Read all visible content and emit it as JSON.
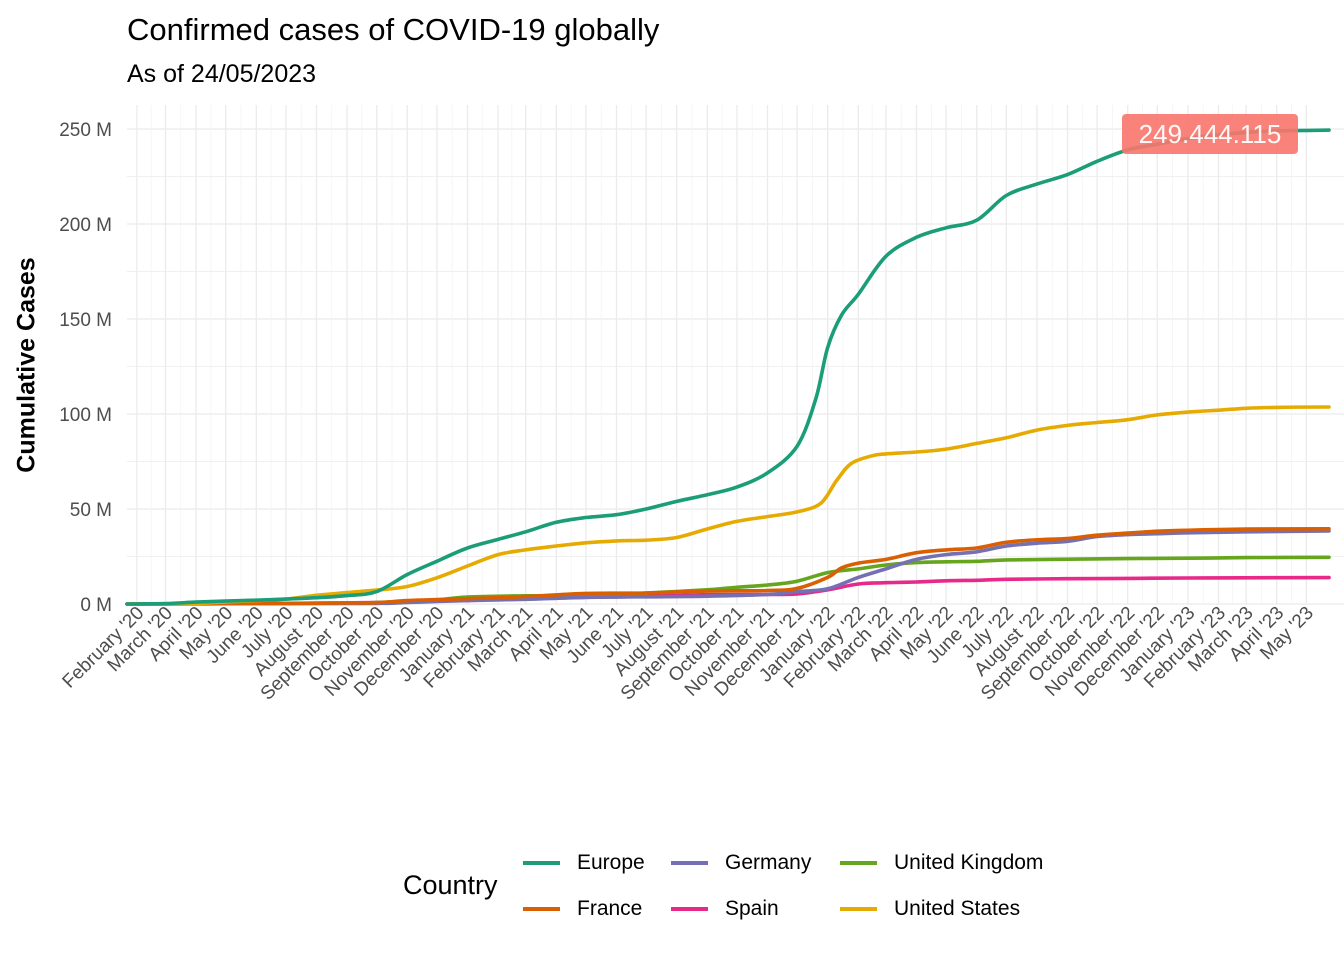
{
  "chart_data": {
    "type": "line",
    "title": "Confirmed cases of COVID-19 globally",
    "subtitle": "As of 24/05/2023",
    "xlabel": "",
    "ylabel": "Cumulative Cases",
    "xlim": [
      "2020-01-22",
      "2023-05-24"
    ],
    "ylim": [
      0,
      260000000
    ],
    "y_ticks": [
      {
        "value": 0,
        "label": "0 M"
      },
      {
        "value": 50000000,
        "label": "50 M"
      },
      {
        "value": 100000000,
        "label": "100 M"
      },
      {
        "value": 150000000,
        "label": "150 M"
      },
      {
        "value": 200000000,
        "label": "200 M"
      },
      {
        "value": 250000000,
        "label": "250 M"
      }
    ],
    "x_ticks": [
      {
        "date": "2020-02-01",
        "label": "February '20"
      },
      {
        "date": "2020-03-01",
        "label": "March '20"
      },
      {
        "date": "2020-04-01",
        "label": "April '20"
      },
      {
        "date": "2020-05-01",
        "label": "May '20"
      },
      {
        "date": "2020-06-01",
        "label": "June '20"
      },
      {
        "date": "2020-07-01",
        "label": "July '20"
      },
      {
        "date": "2020-08-01",
        "label": "August '20"
      },
      {
        "date": "2020-09-01",
        "label": "September '20"
      },
      {
        "date": "2020-10-01",
        "label": "October '20"
      },
      {
        "date": "2020-11-01",
        "label": "November '20"
      },
      {
        "date": "2020-12-01",
        "label": "December '20"
      },
      {
        "date": "2021-01-01",
        "label": "January '21"
      },
      {
        "date": "2021-02-01",
        "label": "February '21"
      },
      {
        "date": "2021-03-01",
        "label": "March '21"
      },
      {
        "date": "2021-04-01",
        "label": "April '21"
      },
      {
        "date": "2021-05-01",
        "label": "May '21"
      },
      {
        "date": "2021-06-01",
        "label": "June '21"
      },
      {
        "date": "2021-07-01",
        "label": "July '21"
      },
      {
        "date": "2021-08-01",
        "label": "August '21"
      },
      {
        "date": "2021-09-01",
        "label": "September '21"
      },
      {
        "date": "2021-10-01",
        "label": "October '21"
      },
      {
        "date": "2021-11-01",
        "label": "November '21"
      },
      {
        "date": "2021-12-01",
        "label": "December '21"
      },
      {
        "date": "2022-01-01",
        "label": "January '22"
      },
      {
        "date": "2022-02-01",
        "label": "February '22"
      },
      {
        "date": "2022-03-01",
        "label": "March '22"
      },
      {
        "date": "2022-04-01",
        "label": "April '22"
      },
      {
        "date": "2022-05-01",
        "label": "May '22"
      },
      {
        "date": "2022-06-01",
        "label": "June '22"
      },
      {
        "date": "2022-07-01",
        "label": "July '22"
      },
      {
        "date": "2022-08-01",
        "label": "August '22"
      },
      {
        "date": "2022-09-01",
        "label": "September '22"
      },
      {
        "date": "2022-10-01",
        "label": "October '22"
      },
      {
        "date": "2022-11-01",
        "label": "November '22"
      },
      {
        "date": "2022-12-01",
        "label": "December '22"
      },
      {
        "date": "2023-01-01",
        "label": "January '23"
      },
      {
        "date": "2023-02-01",
        "label": "February '23"
      },
      {
        "date": "2023-03-01",
        "label": "March '23"
      },
      {
        "date": "2023-04-01",
        "label": "April '23"
      },
      {
        "date": "2023-05-01",
        "label": "May '23"
      }
    ],
    "grid": true,
    "legend": {
      "title": "Country",
      "position": "bottom"
    },
    "annotation": {
      "label": "249.444.115",
      "date": "2023-05-24",
      "value": 249444115,
      "color": "#F8766D"
    },
    "series": [
      {
        "name": "Europe",
        "color": "#1B9E77",
        "points": [
          [
            "2020-01-22",
            0
          ],
          [
            "2020-03-01",
            0.2
          ],
          [
            "2020-04-01",
            1.0
          ],
          [
            "2020-05-01",
            1.5
          ],
          [
            "2020-06-01",
            2.0
          ],
          [
            "2020-07-01",
            2.6
          ],
          [
            "2020-08-01",
            3.3
          ],
          [
            "2020-09-01",
            4.4
          ],
          [
            "2020-10-01",
            6.5
          ],
          [
            "2020-11-01",
            15.5
          ],
          [
            "2020-12-01",
            22.5
          ],
          [
            "2021-01-01",
            29.5
          ],
          [
            "2021-02-01",
            34
          ],
          [
            "2021-03-01",
            38
          ],
          [
            "2021-04-01",
            43
          ],
          [
            "2021-05-01",
            45.5
          ],
          [
            "2021-06-01",
            47
          ],
          [
            "2021-07-01",
            50
          ],
          [
            "2021-08-01",
            54
          ],
          [
            "2021-09-01",
            57.5
          ],
          [
            "2021-10-01",
            61.5
          ],
          [
            "2021-11-01",
            69
          ],
          [
            "2021-12-01",
            83
          ],
          [
            "2021-12-20",
            108
          ],
          [
            "2022-01-01",
            135
          ],
          [
            "2022-01-15",
            152
          ],
          [
            "2022-02-01",
            163
          ],
          [
            "2022-03-01",
            183
          ],
          [
            "2022-04-01",
            193
          ],
          [
            "2022-05-01",
            198
          ],
          [
            "2022-06-01",
            202
          ],
          [
            "2022-07-01",
            215
          ],
          [
            "2022-08-01",
            221
          ],
          [
            "2022-09-01",
            226
          ],
          [
            "2022-10-01",
            233
          ],
          [
            "2022-11-01",
            239
          ],
          [
            "2022-12-01",
            242
          ],
          [
            "2023-01-01",
            245
          ],
          [
            "2023-02-01",
            247
          ],
          [
            "2023-03-01",
            248.2
          ],
          [
            "2023-04-01",
            249
          ],
          [
            "2023-05-24",
            249.44
          ]
        ]
      },
      {
        "name": "France",
        "color": "#D95F02",
        "points": [
          [
            "2020-01-22",
            0
          ],
          [
            "2020-06-01",
            0.2
          ],
          [
            "2020-09-01",
            0.5
          ],
          [
            "2020-10-01",
            0.7
          ],
          [
            "2020-11-01",
            1.8
          ],
          [
            "2020-12-01",
            2.3
          ],
          [
            "2021-01-01",
            2.8
          ],
          [
            "2021-03-01",
            3.9
          ],
          [
            "2021-05-01",
            5.6
          ],
          [
            "2021-07-01",
            5.8
          ],
          [
            "2021-09-01",
            6.8
          ],
          [
            "2021-11-01",
            7.1
          ],
          [
            "2021-12-01",
            8.2
          ],
          [
            "2022-01-01",
            14
          ],
          [
            "2022-01-15",
            19
          ],
          [
            "2022-02-01",
            21.5
          ],
          [
            "2022-03-01",
            23.5
          ],
          [
            "2022-04-01",
            27
          ],
          [
            "2022-05-01",
            28.5
          ],
          [
            "2022-06-01",
            29.5
          ],
          [
            "2022-07-01",
            32.5
          ],
          [
            "2022-08-01",
            33.8
          ],
          [
            "2022-09-01",
            34.5
          ],
          [
            "2022-10-01",
            36.2
          ],
          [
            "2022-11-01",
            37.3
          ],
          [
            "2022-12-01",
            38.3
          ],
          [
            "2023-01-01",
            38.8
          ],
          [
            "2023-03-01",
            39.4
          ],
          [
            "2023-05-24",
            39.6
          ]
        ]
      },
      {
        "name": "Germany",
        "color": "#7570B3",
        "points": [
          [
            "2020-01-22",
            0
          ],
          [
            "2020-06-01",
            0.2
          ],
          [
            "2020-10-01",
            0.3
          ],
          [
            "2020-11-01",
            0.8
          ],
          [
            "2020-12-01",
            1.3
          ],
          [
            "2021-01-01",
            1.8
          ],
          [
            "2021-03-01",
            2.5
          ],
          [
            "2021-05-01",
            3.5
          ],
          [
            "2021-07-01",
            3.8
          ],
          [
            "2021-09-01",
            4.1
          ],
          [
            "2021-11-01",
            5.0
          ],
          [
            "2021-12-01",
            6.5
          ],
          [
            "2022-01-01",
            8
          ],
          [
            "2022-02-01",
            14
          ],
          [
            "2022-03-01",
            18.5
          ],
          [
            "2022-04-01",
            23.5
          ],
          [
            "2022-05-01",
            26
          ],
          [
            "2022-06-01",
            27.5
          ],
          [
            "2022-07-01",
            30.5
          ],
          [
            "2022-08-01",
            32
          ],
          [
            "2022-09-01",
            33
          ],
          [
            "2022-10-01",
            35.5
          ],
          [
            "2022-11-01",
            36.5
          ],
          [
            "2022-12-01",
            37
          ],
          [
            "2023-01-01",
            37.5
          ],
          [
            "2023-03-01",
            38
          ],
          [
            "2023-05-24",
            38.4
          ]
        ]
      },
      {
        "name": "Spain",
        "color": "#E7298A",
        "points": [
          [
            "2020-01-22",
            0
          ],
          [
            "2020-06-01",
            0.2
          ],
          [
            "2020-10-01",
            0.8
          ],
          [
            "2020-12-01",
            1.7
          ],
          [
            "2021-01-01",
            1.9
          ],
          [
            "2021-03-01",
            3.1
          ],
          [
            "2021-05-01",
            3.6
          ],
          [
            "2021-07-01",
            4.0
          ],
          [
            "2021-09-01",
            4.9
          ],
          [
            "2021-11-01",
            5.0
          ],
          [
            "2021-12-01",
            5.3
          ],
          [
            "2022-01-01",
            7.5
          ],
          [
            "2022-02-01",
            10.5
          ],
          [
            "2022-03-01",
            11.2
          ],
          [
            "2022-04-01",
            11.6
          ],
          [
            "2022-05-01",
            12.2
          ],
          [
            "2022-06-01",
            12.5
          ],
          [
            "2022-07-01",
            13
          ],
          [
            "2022-09-01",
            13.3
          ],
          [
            "2022-11-01",
            13.5
          ],
          [
            "2023-01-01",
            13.7
          ],
          [
            "2023-03-01",
            13.8
          ],
          [
            "2023-05-24",
            13.9
          ]
        ]
      },
      {
        "name": "United Kingdom",
        "color": "#66A61E",
        "points": [
          [
            "2020-01-22",
            0
          ],
          [
            "2020-06-01",
            0.3
          ],
          [
            "2020-09-01",
            0.5
          ],
          [
            "2020-10-01",
            0.8
          ],
          [
            "2020-11-01",
            1.5
          ],
          [
            "2020-12-01",
            2.1
          ],
          [
            "2021-01-01",
            3.7
          ],
          [
            "2021-03-01",
            4.3
          ],
          [
            "2021-05-01",
            4.4
          ],
          [
            "2021-07-01",
            5.8
          ],
          [
            "2021-08-01",
            6.6
          ],
          [
            "2021-09-01",
            7.5
          ],
          [
            "2021-10-01",
            8.8
          ],
          [
            "2021-11-01",
            10
          ],
          [
            "2021-12-01",
            12
          ],
          [
            "2022-01-01",
            16.5
          ],
          [
            "2022-02-01",
            18.5
          ],
          [
            "2022-03-01",
            20.5
          ],
          [
            "2022-04-01",
            21.8
          ],
          [
            "2022-05-01",
            22.2
          ],
          [
            "2022-06-01",
            22.5
          ],
          [
            "2022-07-01",
            23.2
          ],
          [
            "2022-09-01",
            23.6
          ],
          [
            "2022-11-01",
            23.9
          ],
          [
            "2023-01-01",
            24.1
          ],
          [
            "2023-03-01",
            24.4
          ],
          [
            "2023-05-24",
            24.6
          ]
        ]
      },
      {
        "name": "United States",
        "color": "#E6AB02",
        "points": [
          [
            "2020-01-22",
            0
          ],
          [
            "2020-03-01",
            0
          ],
          [
            "2020-04-01",
            0.2
          ],
          [
            "2020-05-01",
            1.1
          ],
          [
            "2020-06-01",
            1.8
          ],
          [
            "2020-07-01",
            2.6
          ],
          [
            "2020-08-01",
            4.6
          ],
          [
            "2020-09-01",
            6.0
          ],
          [
            "2020-10-01",
            7.3
          ],
          [
            "2020-11-01",
            9.2
          ],
          [
            "2020-12-01",
            13.8
          ],
          [
            "2021-01-01",
            20
          ],
          [
            "2021-02-01",
            26
          ],
          [
            "2021-03-01",
            28.5
          ],
          [
            "2021-04-01",
            30.5
          ],
          [
            "2021-05-01",
            32.2
          ],
          [
            "2021-06-01",
            33.2
          ],
          [
            "2021-07-01",
            33.6
          ],
          [
            "2021-08-01",
            35
          ],
          [
            "2021-09-01",
            39.5
          ],
          [
            "2021-10-01",
            43.5
          ],
          [
            "2021-11-01",
            46
          ],
          [
            "2021-12-01",
            48.5
          ],
          [
            "2021-12-25",
            53
          ],
          [
            "2022-01-10",
            65
          ],
          [
            "2022-01-25",
            74
          ],
          [
            "2022-02-15",
            78
          ],
          [
            "2022-03-01",
            79
          ],
          [
            "2022-04-01",
            80
          ],
          [
            "2022-05-01",
            81.5
          ],
          [
            "2022-06-01",
            84.5
          ],
          [
            "2022-07-01",
            87.5
          ],
          [
            "2022-08-01",
            91.5
          ],
          [
            "2022-09-01",
            94
          ],
          [
            "2022-10-01",
            95.5
          ],
          [
            "2022-11-01",
            97
          ],
          [
            "2022-12-01",
            99.5
          ],
          [
            "2023-01-01",
            101
          ],
          [
            "2023-02-01",
            102
          ],
          [
            "2023-03-01",
            103
          ],
          [
            "2023-04-01",
            103.5
          ],
          [
            "2023-05-24",
            103.7
          ]
        ]
      }
    ],
    "value_unit_scale": 1000000
  }
}
